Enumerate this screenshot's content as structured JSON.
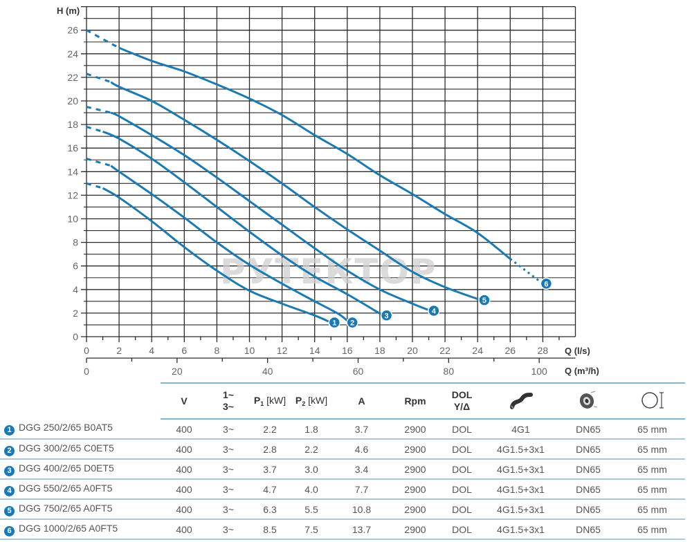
{
  "chart_data": {
    "type": "line",
    "title": "",
    "xlabel": "Q (l/s)",
    "xlabel2": "Q (m³/h)",
    "ylabel": "H (m)",
    "xlim": [
      0,
      30
    ],
    "ylim": [
      0,
      28
    ],
    "grid": true,
    "x_ticks": [
      0,
      2,
      4,
      6,
      8,
      10,
      12,
      14,
      16,
      18,
      20,
      22,
      24,
      26,
      28
    ],
    "x2_ticks": [
      0,
      20,
      40,
      60,
      80,
      100
    ],
    "y_ticks": [
      0,
      2,
      4,
      6,
      8,
      10,
      12,
      14,
      16,
      18,
      20,
      22,
      24,
      26
    ],
    "watermark": "РУТЕКТОР",
    "series": [
      {
        "name": "1",
        "label": "DGG 250/2/65 B0AT5",
        "dashed": [
          [
            0,
            13.0
          ],
          [
            1,
            12.6
          ]
        ],
        "solid": [
          [
            1,
            12.6
          ],
          [
            2,
            11.8
          ],
          [
            4,
            9.8
          ],
          [
            6,
            7.6
          ],
          [
            8,
            5.6
          ],
          [
            10,
            3.9
          ],
          [
            12,
            2.8
          ],
          [
            14,
            1.8
          ],
          [
            15,
            1.2
          ]
        ],
        "end": [
          15,
          1.2
        ]
      },
      {
        "name": "2",
        "label": "DGG 300/2/65 C0ET5",
        "dashed": [
          [
            0,
            15.1
          ],
          [
            1.5,
            14.5
          ]
        ],
        "solid": [
          [
            1.5,
            14.5
          ],
          [
            2,
            14.0
          ],
          [
            4,
            12.1
          ],
          [
            6,
            10.1
          ],
          [
            8,
            8.0
          ],
          [
            10,
            6.1
          ],
          [
            12,
            4.5
          ],
          [
            14,
            3.0
          ],
          [
            15.5,
            1.9
          ],
          [
            16.1,
            1.2
          ]
        ],
        "end": [
          16.1,
          1.2
        ]
      },
      {
        "name": "3",
        "label": "DGG 400/2/65 D0ET5",
        "dashed": [
          [
            0,
            17.8
          ],
          [
            1,
            17.4
          ]
        ],
        "solid": [
          [
            1,
            17.4
          ],
          [
            2,
            16.8
          ],
          [
            4,
            15.1
          ],
          [
            6,
            13.1
          ],
          [
            8,
            11.0
          ],
          [
            10,
            8.9
          ],
          [
            12,
            6.9
          ],
          [
            14,
            5.1
          ],
          [
            16,
            3.6
          ],
          [
            18.2,
            1.8
          ]
        ],
        "end": [
          18.2,
          1.8
        ]
      },
      {
        "name": "4",
        "label": "DGG 550/2/65 A0FT5",
        "dashed": [
          [
            0,
            19.5
          ],
          [
            1.5,
            19.0
          ]
        ],
        "solid": [
          [
            1.5,
            19.0
          ],
          [
            2,
            18.7
          ],
          [
            4,
            17.1
          ],
          [
            6,
            15.4
          ],
          [
            8,
            13.5
          ],
          [
            10,
            11.5
          ],
          [
            12,
            9.5
          ],
          [
            14,
            7.5
          ],
          [
            16,
            5.6
          ],
          [
            18,
            4.0
          ],
          [
            20,
            2.8
          ],
          [
            21.1,
            2.2
          ]
        ],
        "end": [
          21.1,
          2.2
        ]
      },
      {
        "name": "5",
        "label": "DGG 750/2/65 A0FT5",
        "dashed": [
          [
            0,
            22.3
          ],
          [
            1.5,
            21.6
          ]
        ],
        "solid": [
          [
            1.5,
            21.6
          ],
          [
            2,
            21.2
          ],
          [
            4,
            20.0
          ],
          [
            6,
            18.4
          ],
          [
            8,
            16.7
          ],
          [
            10,
            14.9
          ],
          [
            12,
            13.0
          ],
          [
            14,
            11.0
          ],
          [
            16,
            9.1
          ],
          [
            18,
            7.3
          ],
          [
            20,
            5.5
          ],
          [
            22,
            4.2
          ],
          [
            24.2,
            3.1
          ]
        ],
        "end": [
          24.2,
          3.1
        ]
      },
      {
        "name": "6",
        "label": "DGG 1000/2/65 A0FT5",
        "dashed": [
          [
            0,
            26.0
          ],
          [
            2,
            24.5
          ]
        ],
        "solid": [
          [
            2,
            24.5
          ],
          [
            4,
            23.4
          ],
          [
            6,
            22.5
          ],
          [
            8,
            21.4
          ],
          [
            10,
            20.2
          ],
          [
            12,
            18.8
          ],
          [
            14,
            17.1
          ],
          [
            16,
            15.5
          ],
          [
            18,
            13.7
          ],
          [
            20,
            12.1
          ],
          [
            22,
            10.4
          ],
          [
            24,
            8.8
          ],
          [
            26,
            6.6
          ]
        ],
        "dashed_end": [
          [
            26,
            6.6
          ],
          [
            28,
            4.5
          ]
        ],
        "end": [
          28,
          4.5
        ]
      }
    ]
  },
  "table": {
    "headers": {
      "v": "V",
      "phase_1": "1~",
      "phase_3": "3~",
      "p1": "P",
      "p1_sub": "1",
      "p1_unit": " [kW]",
      "p2": "P",
      "p2_sub": "2",
      "p2_unit": " [kW]",
      "a": "A",
      "rpm": "Rpm",
      "start_1": "DOL",
      "start_2": "Y/Δ",
      "cable_icon": "cable-icon",
      "flange_icon": "flange-icon",
      "passage_icon": "free-passage-icon"
    },
    "rows": [
      {
        "num": "1",
        "model": "DGG 250/2/65 B0AT5",
        "v": "400",
        "phase": "3~",
        "p1": "2.2",
        "p2": "1.8",
        "a": "3.7",
        "rpm": "2900",
        "start": "DOL",
        "cable": "4G1",
        "flange": "DN65",
        "passage": "65 mm"
      },
      {
        "num": "2",
        "model": "DGG 300/2/65 C0ET5",
        "v": "400",
        "phase": "3~",
        "p1": "2.8",
        "p2": "2.2",
        "a": "4.6",
        "rpm": "2900",
        "start": "DOL",
        "cable": "4G1.5+3x1",
        "flange": "DN65",
        "passage": "65 mm"
      },
      {
        "num": "3",
        "model": "DGG 400/2/65 D0ET5",
        "v": "400",
        "phase": "3~",
        "p1": "3.7",
        "p2": "3.0",
        "a": "3.4",
        "rpm": "2900",
        "start": "DOL",
        "cable": "4G1.5+3x1",
        "flange": "DN65",
        "passage": "65 mm"
      },
      {
        "num": "4",
        "model": "DGG 550/2/65 A0FT5",
        "v": "400",
        "phase": "3~",
        "p1": "4.7",
        "p2": "4.0",
        "a": "7.7",
        "rpm": "2900",
        "start": "DOL",
        "cable": "4G1.5+3x1",
        "flange": "DN65",
        "passage": "65 mm"
      },
      {
        "num": "5",
        "model": "DGG 750/2/65 A0FT5",
        "v": "400",
        "phase": "3~",
        "p1": "6.3",
        "p2": "5.5",
        "a": "10.8",
        "rpm": "2900",
        "start": "DOL",
        "cable": "4G1.5+3x1",
        "flange": "DN65",
        "passage": "65 mm"
      },
      {
        "num": "6",
        "model": "DGG 1000/2/65 A0FT5",
        "v": "400",
        "phase": "3~",
        "p1": "8.5",
        "p2": "7.5",
        "a": "13.7",
        "rpm": "2900",
        "start": "DOL",
        "cable": "4G1.5+3x1",
        "flange": "DN65",
        "passage": "65 mm"
      }
    ]
  },
  "colors": {
    "curve": "#1a7ab5",
    "marker": "#1978b6",
    "grid": "#222222",
    "rule": "#7ab8d9"
  }
}
